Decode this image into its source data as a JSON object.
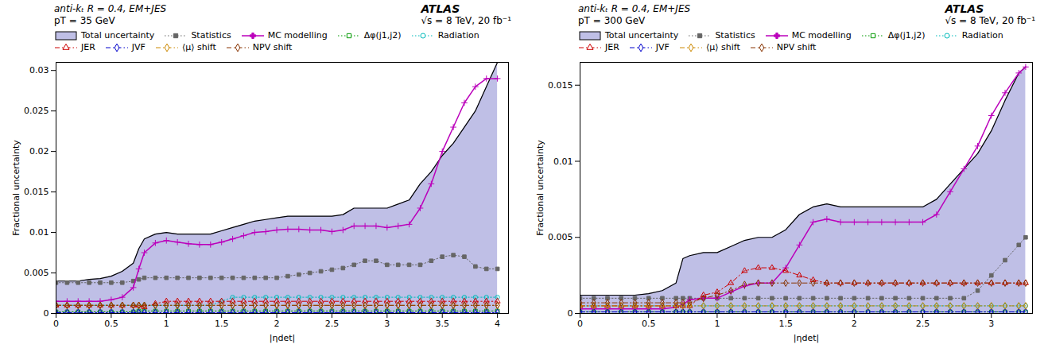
{
  "chart_data": [
    {
      "type": "line",
      "annotations": [
        "anti-kₜ  R = 0.4, EM+JES",
        "pT = 35 GeV",
        "ATLAS",
        "√s = 8 TeV, 20 fb⁻¹"
      ],
      "ylabel": "Fractional uncertainty",
      "xlabel": "|ηdet|",
      "ylim": [
        0,
        0.031
      ],
      "xlim": [
        0,
        4.1
      ],
      "yticks": [
        0,
        0.005,
        0.01,
        0.015,
        0.02,
        0.025,
        0.03
      ],
      "xticks": [
        0,
        0.5,
        1.0,
        1.5,
        2.0,
        2.5,
        3.0,
        3.5,
        4.0
      ],
      "legend": "top",
      "x": [
        0.0,
        0.1,
        0.2,
        0.3,
        0.4,
        0.5,
        0.6,
        0.7,
        0.75,
        0.8,
        0.9,
        1.0,
        1.1,
        1.2,
        1.3,
        1.4,
        1.5,
        1.6,
        1.7,
        1.8,
        1.9,
        2.0,
        2.1,
        2.2,
        2.3,
        2.4,
        2.5,
        2.6,
        2.7,
        2.8,
        2.9,
        3.0,
        3.1,
        3.2,
        3.3,
        3.4,
        3.5,
        3.6,
        3.7,
        3.8,
        3.9,
        4.0
      ],
      "series": [
        {
          "name": "Total uncertainty",
          "type": "area",
          "color": "#aaaadd",
          "values": [
            0.004,
            0.004,
            0.004,
            0.0042,
            0.0043,
            0.0046,
            0.0052,
            0.0062,
            0.008,
            0.0092,
            0.0098,
            0.01,
            0.0098,
            0.0098,
            0.0098,
            0.0098,
            0.0102,
            0.0106,
            0.011,
            0.0114,
            0.0116,
            0.0118,
            0.012,
            0.012,
            0.012,
            0.012,
            0.012,
            0.0122,
            0.013,
            0.013,
            0.013,
            0.013,
            0.0135,
            0.014,
            0.016,
            0.0175,
            0.0195,
            0.021,
            0.023,
            0.025,
            0.028,
            0.031
          ]
        },
        {
          "name": "Statistics",
          "color": "#666666",
          "marker": "square",
          "line_style": "dotted",
          "values": [
            0.0038,
            0.0038,
            0.0038,
            0.0038,
            0.0038,
            0.0038,
            0.0038,
            0.004,
            0.0042,
            0.0044,
            0.0044,
            0.0044,
            0.0044,
            0.0044,
            0.0044,
            0.0044,
            0.0044,
            0.0044,
            0.0044,
            0.0044,
            0.0044,
            0.0044,
            0.0046,
            0.0048,
            0.005,
            0.0052,
            0.0054,
            0.0056,
            0.006,
            0.0065,
            0.0065,
            0.006,
            0.006,
            0.006,
            0.006,
            0.0065,
            0.007,
            0.0072,
            0.007,
            0.0058,
            0.0055,
            0.0055
          ]
        },
        {
          "name": "MC modelling",
          "color": "#bb00bb",
          "marker": "plus",
          "line_style": "solid",
          "values": [
            0.0015,
            0.0015,
            0.0015,
            0.0015,
            0.0015,
            0.0017,
            0.002,
            0.0032,
            0.0055,
            0.0075,
            0.0087,
            0.009,
            0.0088,
            0.0086,
            0.0085,
            0.0085,
            0.0088,
            0.0092,
            0.0096,
            0.01,
            0.0101,
            0.0103,
            0.0104,
            0.0104,
            0.0103,
            0.0103,
            0.0101,
            0.0103,
            0.0108,
            0.0108,
            0.0108,
            0.0106,
            0.0108,
            0.011,
            0.013,
            0.016,
            0.02,
            0.023,
            0.026,
            0.028,
            0.029,
            0.029
          ]
        },
        {
          "name": "Δφ(j1,j2)",
          "color": "#009900",
          "marker": "square-open",
          "line_style": "dotted",
          "values": [
            0.0002,
            0.0002,
            0.0002,
            0.0002,
            0.0002,
            0.0002,
            0.0002,
            0.0002,
            0.0003,
            0.0003,
            0.0003,
            0.0003,
            0.0003,
            0.0003,
            0.0003,
            0.0003,
            0.0003,
            0.0003,
            0.0003,
            0.0003,
            0.0003,
            0.0003,
            0.0003,
            0.0003,
            0.0003,
            0.0003,
            0.0003,
            0.0003,
            0.0003,
            0.0003,
            0.0003,
            0.0003,
            0.0003,
            0.0003,
            0.0003,
            0.0003,
            0.0003,
            0.0003,
            0.0003,
            0.0003,
            0.0003,
            0.0003
          ]
        },
        {
          "name": "Radiation",
          "color": "#00bbbb",
          "marker": "circle-open",
          "line_style": "dotted",
          "values": [
            0.001,
            0.001,
            0.001,
            0.001,
            0.001,
            0.001,
            0.001,
            0.001,
            0.001,
            0.001,
            0.001,
            0.001,
            0.001,
            0.001,
            0.001,
            0.001,
            0.0015,
            0.002,
            0.002,
            0.002,
            0.002,
            0.002,
            0.002,
            0.002,
            0.002,
            0.002,
            0.002,
            0.002,
            0.002,
            0.002,
            0.002,
            0.002,
            0.002,
            0.002,
            0.002,
            0.002,
            0.002,
            0.002,
            0.002,
            0.002,
            0.002,
            0.002
          ]
        },
        {
          "name": "JER",
          "color": "#cc0000",
          "marker": "triangle-open",
          "line_style": "dashdot",
          "values": [
            0.001,
            0.001,
            0.001,
            0.001,
            0.001,
            0.001,
            0.001,
            0.001,
            0.001,
            0.0008,
            0.0012,
            0.0015,
            0.0015,
            0.0015,
            0.0015,
            0.0015,
            0.0015,
            0.0015,
            0.0015,
            0.0015,
            0.0015,
            0.0015,
            0.0015,
            0.0015,
            0.0015,
            0.0015,
            0.0015,
            0.0015,
            0.0015,
            0.0015,
            0.0015,
            0.0015,
            0.0015,
            0.0015,
            0.0015,
            0.0015,
            0.0015,
            0.0015,
            0.0015,
            0.0015,
            0.0015,
            0.0015
          ]
        },
        {
          "name": "JVF",
          "color": "#0000cc",
          "marker": "diamond-open",
          "line_style": "dashdot",
          "values": [
            0.0001,
            0.0001,
            0.0001,
            0.0001,
            0.0001,
            0.0001,
            0.0001,
            0.0001,
            0.0001,
            0.0001,
            0.0001,
            0.0001,
            0.0001,
            0.0001,
            0.0001,
            0.0001,
            0.0001,
            0.0001,
            0.0001,
            0.0001,
            0.0001,
            0.0001,
            0.0001,
            0.0001,
            0.0001,
            0.0001,
            0.0001,
            0.0001,
            0.0001,
            0.0001,
            0.0001,
            0.0001,
            0.0001,
            0.0001,
            0.0001,
            0.0001,
            0.0001,
            0.0001,
            0.0001,
            0.0001,
            0.0001,
            0.0001
          ]
        },
        {
          "name": "⟨μ⟩ shift",
          "color": "#cc8800",
          "marker": "diamond-open",
          "line_style": "dashdot",
          "values": [
            0.001,
            0.001,
            0.001,
            0.001,
            0.001,
            0.001,
            0.001,
            0.001,
            0.001,
            0.001,
            0.001,
            0.001,
            0.001,
            0.001,
            0.001,
            0.001,
            0.001,
            0.001,
            0.001,
            0.001,
            0.001,
            0.001,
            0.001,
            0.001,
            0.001,
            0.001,
            0.001,
            0.001,
            0.001,
            0.001,
            0.001,
            0.001,
            0.001,
            0.001,
            0.001,
            0.001,
            0.001,
            0.001,
            0.001,
            0.001,
            0.001,
            0.001
          ]
        },
        {
          "name": "NPV shift",
          "color": "#883300",
          "marker": "diamond-open",
          "line_style": "dashdot",
          "values": [
            0.001,
            0.001,
            0.001,
            0.001,
            0.001,
            0.001,
            0.001,
            0.001,
            0.001,
            0.001,
            0.001,
            0.001,
            0.001,
            0.001,
            0.001,
            0.001,
            0.001,
            0.001,
            0.001,
            0.001,
            0.001,
            0.001,
            0.001,
            0.001,
            0.001,
            0.001,
            0.001,
            0.001,
            0.001,
            0.001,
            0.001,
            0.001,
            0.001,
            0.001,
            0.001,
            0.001,
            0.001,
            0.001,
            0.001,
            0.001,
            0.001,
            0.001
          ]
        }
      ]
    },
    {
      "type": "line",
      "annotations": [
        "anti-kₜ  R = 0.4, EM+JES",
        "pT = 300 GeV",
        "ATLAS",
        "√s = 8 TeV, 20 fb⁻¹"
      ],
      "ylabel": "Fractional uncertainty",
      "xlabel": "|ηdet|",
      "ylim": [
        0,
        0.0165
      ],
      "xlim": [
        0,
        3.3
      ],
      "yticks": [
        0,
        0.005,
        0.01,
        0.015
      ],
      "xticks": [
        0,
        0.5,
        1.0,
        1.5,
        2.0,
        2.5,
        3.0
      ],
      "legend": "top",
      "x": [
        0.0,
        0.1,
        0.2,
        0.3,
        0.4,
        0.5,
        0.6,
        0.7,
        0.75,
        0.8,
        0.9,
        1.0,
        1.1,
        1.2,
        1.3,
        1.4,
        1.5,
        1.6,
        1.7,
        1.8,
        1.9,
        2.0,
        2.1,
        2.2,
        2.3,
        2.4,
        2.5,
        2.6,
        2.7,
        2.8,
        2.9,
        3.0,
        3.1,
        3.2,
        3.25
      ],
      "series": [
        {
          "name": "Total uncertainty",
          "type": "area",
          "color": "#aaaadd",
          "values": [
            0.0012,
            0.0012,
            0.0012,
            0.0012,
            0.0012,
            0.0013,
            0.0015,
            0.002,
            0.0036,
            0.0038,
            0.004,
            0.004,
            0.0044,
            0.0048,
            0.005,
            0.005,
            0.0055,
            0.0065,
            0.007,
            0.0072,
            0.007,
            0.007,
            0.007,
            0.007,
            0.007,
            0.007,
            0.007,
            0.0075,
            0.0085,
            0.0095,
            0.0105,
            0.012,
            0.014,
            0.0158,
            0.0162
          ]
        },
        {
          "name": "Statistics",
          "color": "#666666",
          "marker": "square",
          "line_style": "dotted",
          "values": [
            0.001,
            0.001,
            0.001,
            0.001,
            0.001,
            0.001,
            0.001,
            0.001,
            0.001,
            0.001,
            0.001,
            0.001,
            0.001,
            0.001,
            0.001,
            0.001,
            0.001,
            0.001,
            0.001,
            0.001,
            0.001,
            0.001,
            0.001,
            0.001,
            0.001,
            0.001,
            0.001,
            0.001,
            0.001,
            0.001,
            0.0015,
            0.0025,
            0.0035,
            0.0045,
            0.005
          ]
        },
        {
          "name": "MC modelling",
          "color": "#bb00bb",
          "marker": "plus",
          "line_style": "solid",
          "values": [
            0.0003,
            0.0003,
            0.0003,
            0.0003,
            0.0003,
            0.0003,
            0.0003,
            0.0004,
            0.0006,
            0.0009,
            0.001,
            0.001,
            0.0014,
            0.0018,
            0.002,
            0.002,
            0.003,
            0.0045,
            0.006,
            0.0062,
            0.006,
            0.006,
            0.006,
            0.006,
            0.006,
            0.006,
            0.006,
            0.0065,
            0.008,
            0.0095,
            0.011,
            0.013,
            0.0145,
            0.0158,
            0.0162
          ]
        },
        {
          "name": "Δφ(j1,j2)",
          "color": "#009900",
          "marker": "square-open",
          "line_style": "dotted",
          "values": [
            0.0001,
            0.0001,
            0.0001,
            0.0001,
            0.0001,
            0.0001,
            0.0001,
            0.0001,
            0.0001,
            0.0001,
            0.0001,
            0.0001,
            0.0001,
            0.0001,
            0.0001,
            0.0001,
            0.0001,
            0.0001,
            0.0001,
            0.0001,
            0.0001,
            0.0001,
            0.0001,
            0.0001,
            0.0001,
            0.0001,
            0.0001,
            0.0001,
            0.0001,
            0.0001,
            0.0001,
            0.0001,
            0.0001,
            0.0001,
            0.0001
          ]
        },
        {
          "name": "Radiation",
          "color": "#00bbbb",
          "marker": "circle-open",
          "line_style": "dotted",
          "values": [
            0.0005,
            0.0005,
            0.0005,
            0.0005,
            0.0005,
            0.0005,
            0.0005,
            0.0005,
            0.0005,
            0.0005,
            0.0005,
            0.0005,
            0.0005,
            0.0005,
            0.0005,
            0.0005,
            0.0005,
            0.0005,
            0.0005,
            0.0005,
            0.0005,
            0.0005,
            0.0005,
            0.0005,
            0.0005,
            0.0005,
            0.0005,
            0.0005,
            0.0005,
            0.0005,
            0.0005,
            0.0005,
            0.0005,
            0.0005,
            0.0005
          ]
        },
        {
          "name": "JER",
          "color": "#cc0000",
          "marker": "triangle-open",
          "line_style": "dashdot",
          "values": [
            0.0005,
            0.0005,
            0.0005,
            0.0005,
            0.0005,
            0.0005,
            0.0005,
            0.0005,
            0.0005,
            0.0005,
            0.0012,
            0.0014,
            0.002,
            0.0028,
            0.003,
            0.003,
            0.0028,
            0.0025,
            0.0022,
            0.002,
            0.002,
            0.002,
            0.002,
            0.002,
            0.002,
            0.002,
            0.002,
            0.002,
            0.002,
            0.002,
            0.002,
            0.002,
            0.002,
            0.002,
            0.002
          ]
        },
        {
          "name": "JVF",
          "color": "#0000cc",
          "marker": "diamond-open",
          "line_style": "dashdot",
          "values": [
            0.0001,
            0.0001,
            0.0001,
            0.0001,
            0.0001,
            0.0001,
            0.0001,
            0.0001,
            0.0001,
            0.0001,
            0.0001,
            0.0001,
            0.0001,
            0.0001,
            0.0001,
            0.0001,
            0.0001,
            0.0001,
            0.0001,
            0.0001,
            0.0001,
            0.0001,
            0.0001,
            0.0001,
            0.0001,
            0.0001,
            0.0001,
            0.0001,
            0.0001,
            0.0001,
            0.0001,
            0.0001,
            0.0001,
            0.0001,
            0.0001
          ]
        },
        {
          "name": "⟨μ⟩ shift",
          "color": "#cc8800",
          "marker": "diamond-open",
          "line_style": "dashdot",
          "values": [
            0.0005,
            0.0005,
            0.0005,
            0.0005,
            0.0005,
            0.0005,
            0.0005,
            0.0005,
            0.0005,
            0.0005,
            0.0005,
            0.0005,
            0.0005,
            0.0005,
            0.0005,
            0.0005,
            0.0005,
            0.0005,
            0.0005,
            0.0005,
            0.0005,
            0.0005,
            0.0005,
            0.0005,
            0.0005,
            0.0005,
            0.0005,
            0.0005,
            0.0005,
            0.0005,
            0.0005,
            0.0005,
            0.0005,
            0.0005,
            0.0005
          ]
        },
        {
          "name": "NPV shift",
          "color": "#883300",
          "marker": "diamond-open",
          "line_style": "dashdot",
          "values": [
            0.0007,
            0.0007,
            0.0007,
            0.0007,
            0.0007,
            0.0007,
            0.0007,
            0.0007,
            0.0007,
            0.0007,
            0.001,
            0.0012,
            0.0015,
            0.0019,
            0.002,
            0.002,
            0.002,
            0.002,
            0.002,
            0.002,
            0.002,
            0.002,
            0.002,
            0.002,
            0.002,
            0.002,
            0.002,
            0.002,
            0.002,
            0.002,
            0.002,
            0.002,
            0.002,
            0.002,
            0.002
          ]
        }
      ]
    }
  ]
}
